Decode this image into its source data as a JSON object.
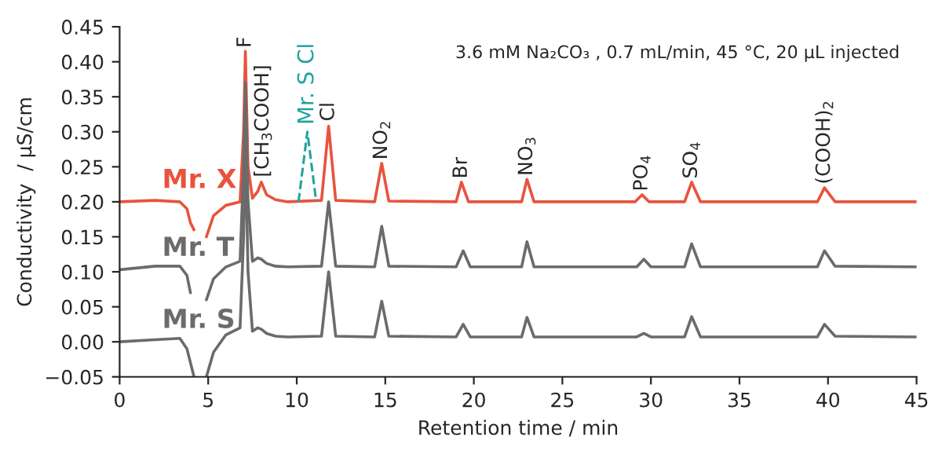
{
  "chart_data": {
    "type": "line",
    "xlabel": "Retention time / min",
    "ylabel": "Conductivity  / μS/cm",
    "xlim": [
      0,
      45
    ],
    "ylim": [
      -0.05,
      0.45
    ],
    "xticks": [
      0,
      5,
      10,
      15,
      20,
      25,
      30,
      35,
      40,
      45
    ],
    "yticks": [
      {
        "value": -0.05,
        "label": "−0.05"
      },
      {
        "value": 0,
        "label": "0.00"
      },
      {
        "value": 0.05,
        "label": "0.05"
      },
      {
        "value": 0.1,
        "label": "0.10"
      },
      {
        "value": 0.15,
        "label": "0.15"
      },
      {
        "value": 0.2,
        "label": "0.20"
      },
      {
        "value": 0.25,
        "label": "0.25"
      },
      {
        "value": 0.3,
        "label": "0.30"
      },
      {
        "value": 0.35,
        "label": "0.35"
      },
      {
        "value": 0.4,
        "label": "0.40"
      },
      {
        "value": 0.45,
        "label": "0.45"
      }
    ],
    "grid": false,
    "legend": false,
    "marker": "none",
    "series": [
      {
        "name": "Mr. X",
        "color": "#e8533d",
        "x": [
          0,
          2,
          3.4,
          3.8,
          4.0,
          4.2,
          4.5,
          4.9,
          5.3,
          6.0,
          6.8,
          7.0,
          7.1,
          7.25,
          7.5,
          7.8,
          8.0,
          8.3,
          8.8,
          9.5,
          11.4,
          11.8,
          12.2,
          14.4,
          14.8,
          15.2,
          19.0,
          19.3,
          19.7,
          22.7,
          23.0,
          23.4,
          29.1,
          29.5,
          29.9,
          31.9,
          32.3,
          32.8,
          39.4,
          39.8,
          40.4,
          45
        ],
        "values": [
          0.2,
          0.202,
          0.2,
          0.19,
          0.17,
          0.16,
          null,
          0.15,
          0.18,
          0.195,
          0.2,
          0.3,
          0.415,
          0.25,
          0.205,
          0.215,
          0.228,
          0.21,
          0.203,
          0.2,
          0.202,
          0.308,
          0.202,
          0.2,
          0.255,
          0.201,
          0.2,
          0.228,
          0.2,
          0.2,
          0.232,
          0.2,
          0.2,
          0.21,
          0.2,
          0.2,
          0.228,
          0.2,
          0.2,
          0.22,
          0.2,
          0.2
        ]
      },
      {
        "name": "Mr. T",
        "color": "#6b6b6b",
        "x": [
          0,
          2,
          3.4,
          3.8,
          4.0,
          4.5,
          4.9,
          5.3,
          6.0,
          6.8,
          7.0,
          7.1,
          7.25,
          7.5,
          7.8,
          8.0,
          8.3,
          8.8,
          9.5,
          11.4,
          11.8,
          12.2,
          14.4,
          14.8,
          15.2,
          19.0,
          19.4,
          19.8,
          22.7,
          23.0,
          23.4,
          29.2,
          29.6,
          30.0,
          31.9,
          32.3,
          32.8,
          39.4,
          39.8,
          40.4,
          45
        ],
        "values": [
          0.103,
          0.108,
          0.108,
          0.095,
          0.07,
          null,
          0.06,
          0.09,
          0.107,
          0.115,
          0.25,
          0.37,
          0.2,
          0.115,
          0.12,
          0.118,
          0.112,
          0.108,
          0.107,
          0.108,
          0.2,
          0.108,
          0.107,
          0.165,
          0.108,
          0.107,
          0.13,
          0.107,
          0.107,
          0.143,
          0.107,
          0.107,
          0.118,
          0.107,
          0.107,
          0.14,
          0.107,
          0.107,
          0.13,
          0.108,
          0.107
        ]
      },
      {
        "name": "Mr. S",
        "color": "#6b6b6b",
        "x": [
          0,
          2,
          3.4,
          3.8,
          4.0,
          4.2,
          4.5,
          4.9,
          5.3,
          6.0,
          6.8,
          7.0,
          7.1,
          7.25,
          7.5,
          7.8,
          8.0,
          8.3,
          8.8,
          9.5,
          11.4,
          11.8,
          12.2,
          14.4,
          14.8,
          15.2,
          19.0,
          19.4,
          19.8,
          22.7,
          23.0,
          23.4,
          29.2,
          29.6,
          30.0,
          31.9,
          32.3,
          32.8,
          39.4,
          39.8,
          40.4,
          45
        ],
        "values": [
          0.0,
          0.003,
          0.005,
          -0.01,
          -0.03,
          -0.05,
          null,
          -0.05,
          -0.015,
          0.01,
          0.02,
          0.15,
          0.28,
          0.1,
          0.015,
          0.02,
          0.018,
          0.012,
          0.008,
          0.007,
          0.008,
          0.1,
          0.008,
          0.007,
          0.058,
          0.008,
          0.007,
          0.025,
          0.007,
          0.007,
          0.035,
          0.007,
          0.007,
          0.012,
          0.007,
          0.007,
          0.036,
          0.007,
          0.007,
          0.025,
          0.008,
          0.007
        ]
      },
      {
        "name": "Mr. S Cl",
        "color": "#20a39e",
        "line_style": "dashed",
        "x": [
          10.1,
          10.6,
          11.1
        ],
        "values": [
          0.2,
          0.3,
          0.2
        ]
      }
    ],
    "annotations": [
      "3.6 mM Na₂CO₃ , 0.7 mL/min, 45 °C, 20 μL injected",
      {
        "text": "F",
        "x": 7.1,
        "y": 0.42
      },
      {
        "text": "[CH$_{3}$COOH]",
        "x": 8.1,
        "y": 0.235
      },
      {
        "text": "Cl",
        "x": 11.8,
        "y": 0.315
      },
      {
        "text": "NO$_{2}$",
        "x": 14.8,
        "y": 0.26
      },
      {
        "text": "Br",
        "x": 19.3,
        "y": 0.233
      },
      {
        "text": "NO$_{3}$",
        "x": 23.0,
        "y": 0.237
      },
      {
        "text": "PO$_{4}$",
        "x": 29.5,
        "y": 0.215
      },
      {
        "text": "SO$_{4}$",
        "x": 32.3,
        "y": 0.233
      },
      {
        "text": "(COOH)$_{2}$",
        "x": 39.8,
        "y": 0.225
      }
    ]
  }
}
